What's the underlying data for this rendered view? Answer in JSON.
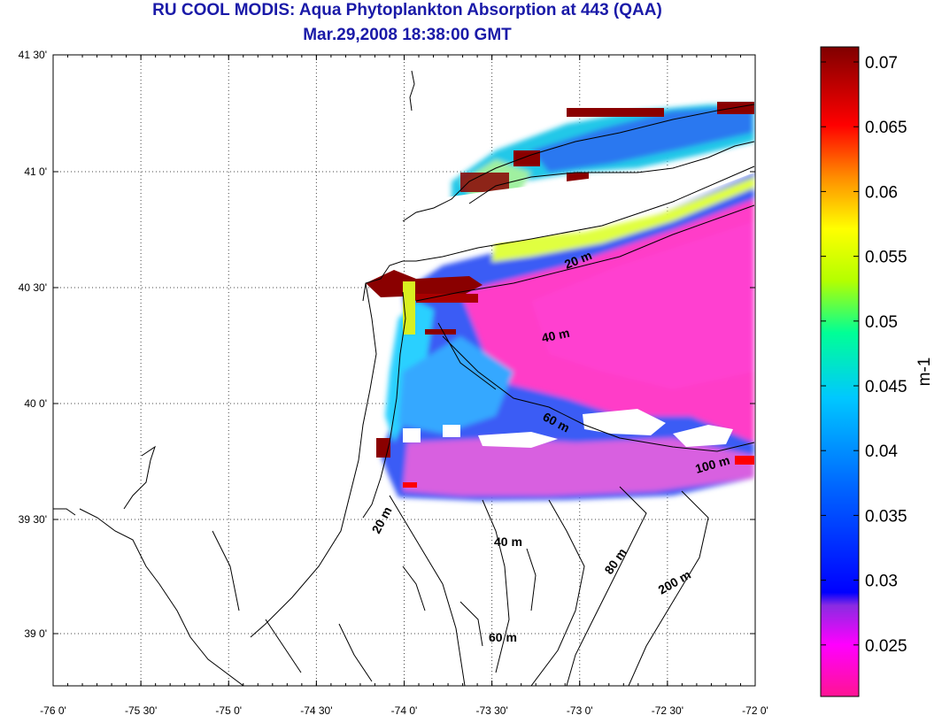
{
  "title": "RU COOL MODIS: Aqua Phytoplankton Absorption at 443 (QAA)",
  "subtitle": "Mar.29,2008 18:38:00 GMT",
  "map": {
    "x_ticks": [
      "-76 0'",
      "-75 30'",
      "-75 0'",
      "-74 30'",
      "-74 0'",
      "-73 30'",
      "-73 0'",
      "-72 30'",
      "-72 0'"
    ],
    "y_ticks": [
      "41 30'",
      "41 0'",
      "40 30'",
      "40 0'",
      "39 30'",
      "39 0'"
    ],
    "grid": "dotted",
    "contour_labels": [
      "20 m",
      "40 m",
      "60 m",
      "100 m",
      "20 m",
      "40 m",
      "80 m",
      "200 m",
      "60 m"
    ]
  },
  "colorbar": {
    "ticks": [
      "0.07",
      "0.065",
      "0.06",
      "0.055",
      "0.05",
      "0.045",
      "0.04",
      "0.035",
      "0.03",
      "0.025"
    ],
    "unit": "m-1",
    "colors": [
      "#ff1493",
      "#ff00ff",
      "#8a2be2",
      "#0000ff",
      "#0064ff",
      "#00c8ff",
      "#00ff96",
      "#b4ff00",
      "#ffff00",
      "#ff8c00",
      "#ff0000",
      "#800000"
    ]
  }
}
